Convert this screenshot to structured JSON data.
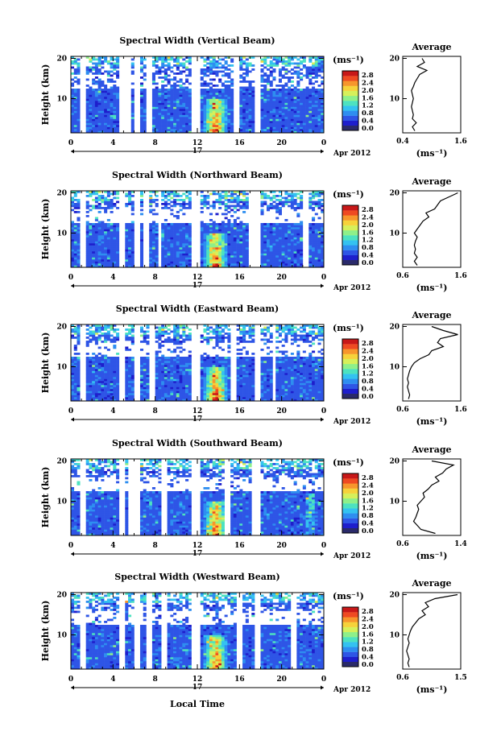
{
  "figure": {
    "date_label": "Apr 2012",
    "day_label": "17",
    "xlabel": "Local Time",
    "ylabel": "Height (km)",
    "colorbar_unit": "(ms⁻¹)",
    "colorbar_ticks": [
      "2.8",
      "2.4",
      "2.0",
      "1.6",
      "1.2",
      "0.8",
      "0.4",
      "0.0"
    ],
    "colormap": [
      "#1e1ecc",
      "#2e55e6",
      "#2e8ef0",
      "#34c2f0",
      "#4de2c0",
      "#8ef08a",
      "#d6f05a",
      "#f6d23a",
      "#f7962c",
      "#ef4a22",
      "#c81818"
    ],
    "profile_title": "Average",
    "profile_xlabel": "(ms⁻¹)"
  },
  "chart_data": [
    {
      "type": "heatmap",
      "title": "Spectral Width (Vertical Beam)",
      "xlabel": "Local Time",
      "ylabel": "Height (km)",
      "x_ticks": [
        "0",
        "4",
        "8",
        "12",
        "16",
        "20",
        "0"
      ],
      "y_ticks": [
        "10",
        "20"
      ],
      "xlim": [
        0,
        24
      ],
      "ylim": [
        1.5,
        20.5
      ],
      "colorbar_range": [
        0.0,
        3.0
      ],
      "profile": {
        "title": "Average",
        "xlabel": "(ms⁻¹)",
        "x_ticks": [
          "0.4",
          "1.6"
        ],
        "xlim": [
          0.4,
          1.6
        ],
        "y_ticks": [
          "10",
          "20"
        ],
        "heights": [
          2,
          3,
          4,
          5,
          6,
          7,
          8,
          9,
          10,
          11,
          12,
          13,
          14,
          15,
          16,
          17,
          18,
          19,
          20
        ],
        "values": [
          0.65,
          0.6,
          0.68,
          0.6,
          0.62,
          0.6,
          0.58,
          0.6,
          0.62,
          0.6,
          0.58,
          0.62,
          0.65,
          0.7,
          0.75,
          0.9,
          0.7,
          0.85,
          0.8
        ]
      }
    },
    {
      "type": "heatmap",
      "title": "Spectral Width (Northward Beam)",
      "xlabel": "Local Time",
      "ylabel": "Height (km)",
      "x_ticks": [
        "0",
        "4",
        "8",
        "12",
        "16",
        "20",
        "0"
      ],
      "y_ticks": [
        "10",
        "20"
      ],
      "xlim": [
        0,
        24
      ],
      "ylim": [
        1.5,
        20.5
      ],
      "colorbar_range": [
        0.0,
        3.0
      ],
      "profile": {
        "title": "Average",
        "xlabel": "(ms⁻¹)",
        "x_ticks": [
          "0.6",
          "1.6"
        ],
        "xlim": [
          0.6,
          1.6
        ],
        "y_ticks": [
          "10",
          "20"
        ],
        "heights": [
          2,
          3,
          4,
          5,
          6,
          7,
          8,
          9,
          10,
          11,
          12,
          13,
          14,
          15,
          16,
          17,
          18,
          19,
          20
        ],
        "values": [
          0.85,
          0.8,
          0.85,
          0.8,
          0.82,
          0.8,
          0.82,
          0.85,
          0.8,
          0.85,
          0.9,
          0.95,
          1.05,
          1.0,
          1.15,
          1.2,
          1.25,
          1.4,
          1.55
        ]
      }
    },
    {
      "type": "heatmap",
      "title": "Spectral Width (Eastward Beam)",
      "xlabel": "Local Time",
      "ylabel": "Height (km)",
      "x_ticks": [
        "0",
        "4",
        "8",
        "12",
        "16",
        "20",
        "0"
      ],
      "y_ticks": [
        "10",
        "20"
      ],
      "xlim": [
        0,
        24
      ],
      "ylim": [
        1.5,
        20.5
      ],
      "colorbar_range": [
        0.0,
        3.0
      ],
      "profile": {
        "title": "Average",
        "xlabel": "(ms⁻¹)",
        "x_ticks": [
          "0.6",
          "1.6"
        ],
        "xlim": [
          0.6,
          1.6
        ],
        "y_ticks": [
          "10",
          "20"
        ],
        "heights": [
          2,
          3,
          4,
          5,
          6,
          7,
          8,
          9,
          10,
          11,
          12,
          13,
          14,
          15,
          16,
          17,
          18,
          19,
          20
        ],
        "values": [
          0.7,
          0.72,
          0.7,
          0.68,
          0.7,
          0.68,
          0.7,
          0.72,
          0.75,
          0.8,
          0.9,
          1.05,
          1.1,
          1.3,
          1.2,
          1.25,
          1.55,
          1.3,
          1.1
        ]
      }
    },
    {
      "type": "heatmap",
      "title": "Spectral Width (Southward Beam)",
      "xlabel": "Local Time",
      "ylabel": "Height (km)",
      "x_ticks": [
        "0",
        "4",
        "8",
        "12",
        "16",
        "20",
        "0"
      ],
      "y_ticks": [
        "10",
        "20"
      ],
      "xlim": [
        0,
        24
      ],
      "ylim": [
        1.5,
        20.5
      ],
      "colorbar_range": [
        0.0,
        3.0
      ],
      "profile": {
        "title": "Average",
        "xlabel": "(ms⁻¹)",
        "x_ticks": [
          "0.6",
          "1.4"
        ],
        "xlim": [
          0.6,
          1.4
        ],
        "y_ticks": [
          "10",
          "20"
        ],
        "heights": [
          2,
          3,
          4,
          5,
          6,
          7,
          8,
          9,
          10,
          11,
          12,
          13,
          14,
          15,
          16,
          17,
          18,
          19,
          20
        ],
        "values": [
          1.05,
          0.85,
          0.8,
          0.75,
          0.78,
          0.8,
          0.82,
          0.8,
          0.85,
          0.9,
          0.88,
          0.95,
          1.0,
          1.1,
          1.05,
          1.15,
          1.2,
          1.3,
          1.0
        ]
      }
    },
    {
      "type": "heatmap",
      "title": "Spectral Width (Westward Beam)",
      "xlabel": "Local Time",
      "ylabel": "Height (km)",
      "x_ticks": [
        "0",
        "4",
        "8",
        "12",
        "16",
        "20",
        "0"
      ],
      "y_ticks": [
        "10",
        "20"
      ],
      "xlim": [
        0,
        24
      ],
      "ylim": [
        1.5,
        20.5
      ],
      "colorbar_range": [
        0.0,
        3.0
      ],
      "profile": {
        "title": "Average",
        "xlabel": "(ms⁻¹)",
        "x_ticks": [
          "0.6",
          "1.5"
        ],
        "xlim": [
          0.6,
          1.5
        ],
        "y_ticks": [
          "10",
          "20"
        ],
        "heights": [
          2,
          3,
          4,
          5,
          6,
          7,
          8,
          9,
          10,
          11,
          12,
          13,
          14,
          15,
          16,
          17,
          18,
          19,
          20
        ],
        "values": [
          0.7,
          0.68,
          0.7,
          0.68,
          0.66,
          0.68,
          0.7,
          0.68,
          0.7,
          0.72,
          0.75,
          0.8,
          0.85,
          0.95,
          0.9,
          1.0,
          0.95,
          1.1,
          1.45
        ]
      }
    }
  ]
}
